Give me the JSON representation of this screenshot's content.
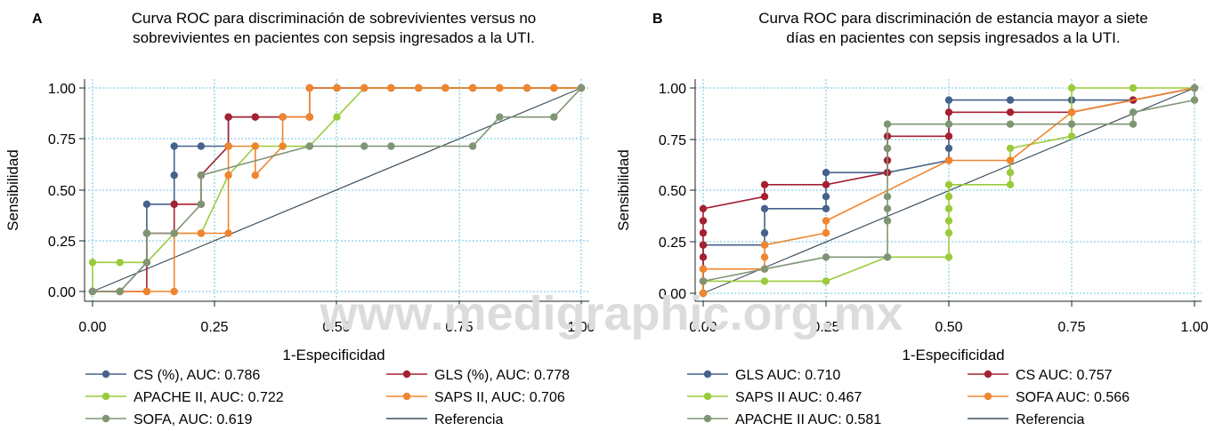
{
  "watermark": "www.medigraphic.org.mx",
  "colors": {
    "navy": "#45628c",
    "red": "#a52032",
    "lime": "#9acb3c",
    "orange": "#f0852d",
    "sage": "#7f9574",
    "reference": "#3f5260",
    "grid": "#6cc4e0"
  },
  "chart_data": [
    {
      "panel": "A",
      "type": "line",
      "title_lines": [
        "Curva ROC para discriminación de sobrevivientes versus no",
        "sobrevivientes en pacientes con sepsis ingresados a la UTI."
      ],
      "xlabel": "1-Especificidad",
      "ylabel": "Sensibilidad",
      "xlim": [
        0,
        1
      ],
      "ylim": [
        0,
        1
      ],
      "xticks": [
        "0.00",
        "0.25",
        "0.50",
        "0.75",
        "1.00"
      ],
      "yticks": [
        "0.00",
        "0.25",
        "0.50",
        "0.75",
        "1.00"
      ],
      "grid": true,
      "legend_placement": "bottom",
      "series": [
        {
          "name": "CS (%), AUC: 0.786",
          "color": "#45628c",
          "x": [
            0,
            0.056,
            0.111,
            0.111,
            0.167,
            0.167,
            0.167,
            0.222,
            0.278,
            0.278,
            0.333,
            0.389,
            0.444,
            0.444,
            0.5,
            0.556,
            0.611,
            0.667,
            0.722,
            0.778,
            0.833,
            0.889,
            0.944,
            1.0
          ],
          "y": [
            0,
            0,
            0.143,
            0.429,
            0.429,
            0.571,
            0.714,
            0.714,
            0.714,
            0.857,
            0.857,
            0.857,
            0.857,
            1.0,
            1.0,
            1.0,
            1.0,
            1.0,
            1.0,
            1.0,
            1.0,
            1.0,
            1.0,
            1.0
          ]
        },
        {
          "name": "GLS (%), AUC: 0.778",
          "color": "#a52032",
          "x": [
            0,
            0.056,
            0.111,
            0.111,
            0.167,
            0.167,
            0.222,
            0.222,
            0.278,
            0.278,
            0.333,
            0.389,
            0.444,
            0.444,
            0.5,
            0.556,
            0.611,
            0.667,
            0.722,
            0.778,
            0.833,
            0.889,
            0.944,
            1.0
          ],
          "y": [
            0,
            0,
            0,
            0.286,
            0.286,
            0.429,
            0.429,
            0.571,
            0.714,
            0.857,
            0.857,
            0.857,
            0.857,
            1.0,
            1.0,
            1.0,
            1.0,
            1.0,
            1.0,
            1.0,
            1.0,
            1.0,
            1.0,
            1.0
          ]
        },
        {
          "name": "APACHE II, AUC: 0.722",
          "color": "#9acb3c",
          "x": [
            0,
            0,
            0.056,
            0.111,
            0.167,
            0.222,
            0.278,
            0.333,
            0.389,
            0.444,
            0.5,
            0.556,
            0.611,
            0.667,
            0.722,
            0.778,
            0.833,
            0.889,
            0.944,
            1.0
          ],
          "y": [
            0,
            0.143,
            0.143,
            0.143,
            0.286,
            0.286,
            0.571,
            0.714,
            0.714,
            0.714,
            0.857,
            1.0,
            1.0,
            1.0,
            1.0,
            1.0,
            1.0,
            1.0,
            1.0,
            1.0
          ]
        },
        {
          "name": "SAPS II, AUC: 0.706",
          "color": "#f0852d",
          "x": [
            0,
            0.056,
            0.111,
            0.167,
            0.167,
            0.222,
            0.278,
            0.278,
            0.278,
            0.333,
            0.333,
            0.389,
            0.389,
            0.444,
            0.444,
            0.5,
            0.556,
            0.611,
            0.667,
            0.722,
            0.778,
            0.833,
            0.889,
            0.944,
            1.0
          ],
          "y": [
            0,
            0,
            0,
            0,
            0.286,
            0.286,
            0.286,
            0.571,
            0.714,
            0.714,
            0.571,
            0.714,
            0.857,
            0.857,
            1.0,
            1.0,
            1.0,
            1.0,
            1.0,
            1.0,
            1.0,
            1.0,
            1.0,
            1.0,
            1.0
          ]
        },
        {
          "name": "SOFA, AUC: 0.619",
          "color": "#7f9574",
          "x": [
            0,
            0.056,
            0.111,
            0.111,
            0.167,
            0.222,
            0.222,
            0.444,
            0.556,
            0.611,
            0.778,
            0.833,
            0.944,
            1.0
          ],
          "y": [
            0,
            0,
            0.143,
            0.286,
            0.286,
            0.429,
            0.571,
            0.714,
            0.714,
            0.714,
            0.714,
            0.857,
            0.857,
            1.0
          ]
        },
        {
          "name": "Referencia",
          "color": "#3f5260",
          "reference": true,
          "x": [
            0,
            1
          ],
          "y": [
            0,
            1
          ]
        }
      ]
    },
    {
      "panel": "B",
      "type": "line",
      "title_lines": [
        "Curva ROC para discriminación de estancia mayor a siete",
        "días en pacientes con sepsis ingresados a la UTI."
      ],
      "xlabel": "1-Especificidad",
      "ylabel": "Sensibilidad",
      "xlim": [
        0,
        1
      ],
      "ylim": [
        0,
        1
      ],
      "xticks": [
        "0.00",
        "0.25",
        "0.50",
        "0.75",
        "1.00"
      ],
      "yticks": [
        "0.00",
        "0.25",
        "0.50",
        "0.75",
        "1.00"
      ],
      "grid": true,
      "legend_placement": "bottom",
      "series": [
        {
          "name": "GLS AUC: 0.710",
          "color": "#45628c",
          "x": [
            0,
            0,
            0,
            0.125,
            0.125,
            0.125,
            0.25,
            0.25,
            0.25,
            0.375,
            0.5,
            0.5,
            0.5,
            0.625,
            0.75,
            0.875,
            1.0
          ],
          "y": [
            0,
            0.059,
            0.235,
            0.235,
            0.294,
            0.412,
            0.412,
            0.471,
            0.588,
            0.588,
            0.647,
            0.706,
            0.941,
            0.941,
            0.941,
            0.941,
            1.0
          ]
        },
        {
          "name": "CS AUC: 0.757",
          "color": "#a52032",
          "x": [
            0,
            0,
            0,
            0,
            0,
            0,
            0,
            0,
            0.125,
            0.125,
            0.25,
            0.375,
            0.375,
            0.375,
            0.375,
            0.5,
            0.5,
            0.625,
            0.75,
            0.875,
            1.0
          ],
          "y": [
            0,
            0.059,
            0.118,
            0.176,
            0.235,
            0.294,
            0.353,
            0.412,
            0.471,
            0.529,
            0.529,
            0.588,
            0.647,
            0.706,
            0.765,
            0.765,
            0.882,
            0.882,
            0.882,
            0.941,
            1.0
          ]
        },
        {
          "name": "SAPS II AUC: 0.467",
          "color": "#9acb3c",
          "x": [
            0,
            0,
            0.125,
            0.25,
            0.25,
            0.375,
            0.5,
            0.5,
            0.5,
            0.5,
            0.5,
            0.5,
            0.625,
            0.625,
            0.625,
            0.625,
            0.75,
            0.75,
            0.875,
            1.0
          ],
          "y": [
            0,
            0.059,
            0.059,
            0.059,
            0.059,
            0.176,
            0.176,
            0.294,
            0.353,
            0.412,
            0.471,
            0.529,
            0.529,
            0.588,
            0.647,
            0.706,
            0.765,
            1.0,
            1.0,
            1.0
          ]
        },
        {
          "name": "SOFA AUC: 0.566",
          "color": "#f0852d",
          "x": [
            0,
            0,
            0,
            0.125,
            0.125,
            0.125,
            0.25,
            0.25,
            0.5,
            0.625,
            0.75,
            1.0
          ],
          "y": [
            0,
            0.059,
            0.118,
            0.118,
            0.176,
            0.235,
            0.294,
            0.353,
            0.647,
            0.647,
            0.882,
            1.0
          ]
        },
        {
          "name": "APACHE II AUC: 0.581",
          "color": "#7f9574",
          "x": [
            0,
            0.125,
            0.25,
            0.375,
            0.375,
            0.375,
            0.375,
            0.375,
            0.375,
            0.5,
            0.625,
            0.75,
            0.875,
            0.875,
            1.0,
            1.0
          ],
          "y": [
            0.059,
            0.118,
            0.176,
            0.176,
            0.353,
            0.412,
            0.471,
            0.706,
            0.824,
            0.824,
            0.824,
            0.824,
            0.824,
            0.882,
            0.941,
            1.0
          ]
        },
        {
          "name": "Referencia",
          "color": "#3f5260",
          "reference": true,
          "x": [
            0,
            1
          ],
          "y": [
            0,
            1
          ]
        }
      ]
    }
  ]
}
